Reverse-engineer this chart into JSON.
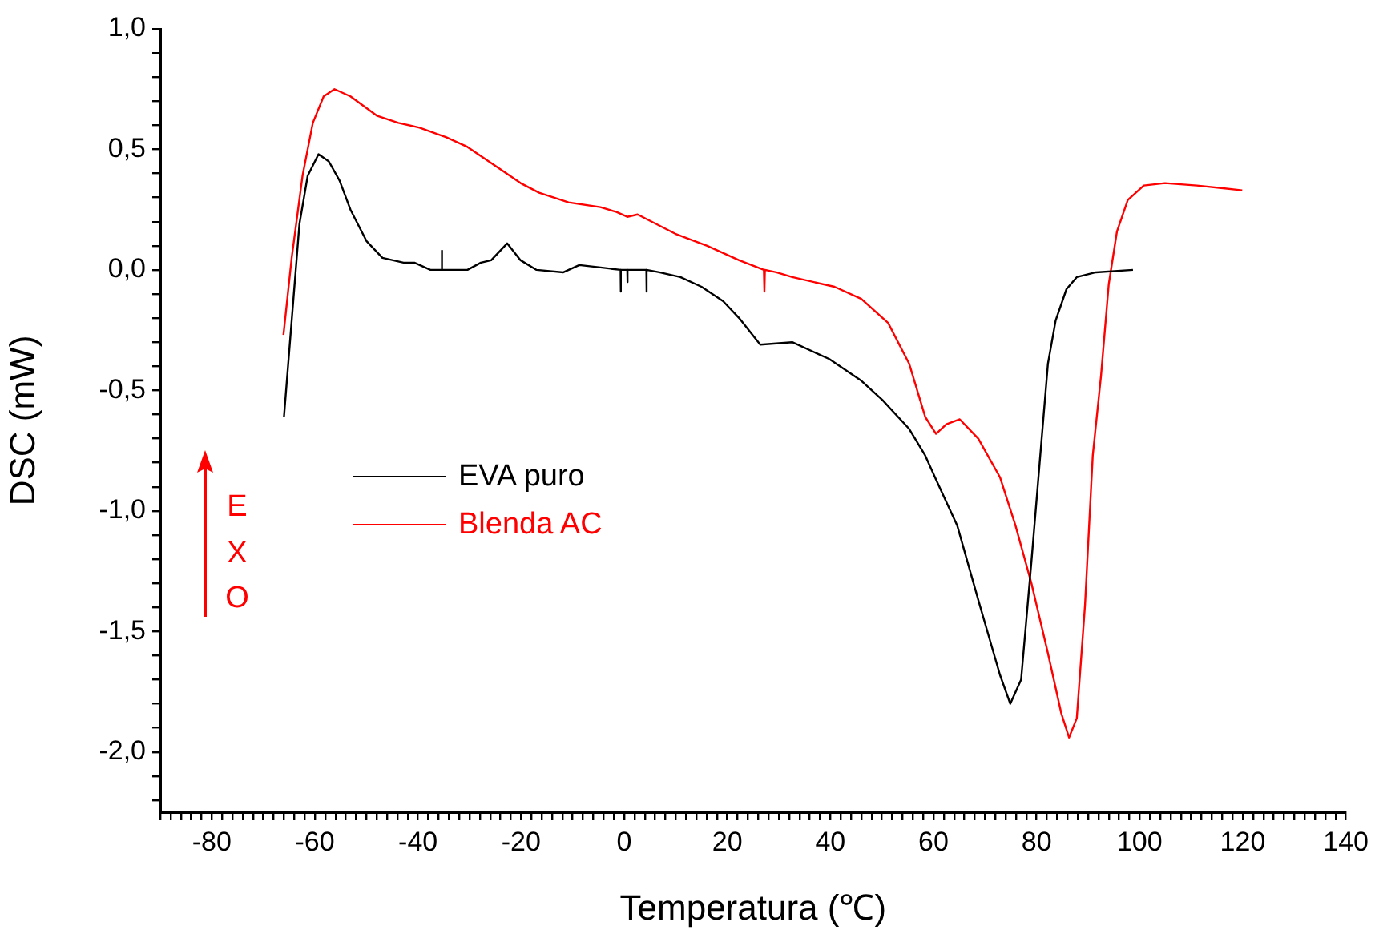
{
  "chart_data": {
    "type": "line",
    "xlabel": "Temperatura (℃)",
    "ylabel": "DSC (mW)",
    "annotations": [
      "EXO"
    ],
    "xlim": [
      -90,
      140
    ],
    "ylim": [
      -2.25,
      1.0
    ],
    "xticks": [
      {
        "value": -90,
        "label": null
      },
      {
        "value": -88,
        "label": null
      },
      {
        "value": -86,
        "label": null
      },
      {
        "value": -84,
        "label": null
      },
      {
        "value": -82,
        "label": null
      },
      -80,
      {
        "value": -78,
        "label": null
      },
      {
        "value": -76,
        "label": null
      },
      {
        "value": -74,
        "label": null
      },
      {
        "value": -72,
        "label": null
      },
      {
        "value": -70,
        "label": null
      },
      {
        "value": -68,
        "label": null
      },
      {
        "value": -66,
        "label": null
      },
      {
        "value": -64,
        "label": null
      },
      {
        "value": -62,
        "label": null
      },
      -60,
      {
        "value": -58,
        "label": null
      },
      {
        "value": -56,
        "label": null
      },
      {
        "value": -54,
        "label": null
      },
      {
        "value": -52,
        "label": null
      },
      {
        "value": -50,
        "label": null
      },
      {
        "value": -48,
        "label": null
      },
      {
        "value": -46,
        "label": null
      },
      {
        "value": -44,
        "label": null
      },
      {
        "value": -42,
        "label": null
      },
      -40,
      {
        "value": -38,
        "label": null
      },
      {
        "value": -36,
        "label": null
      },
      {
        "value": -34,
        "label": null
      },
      {
        "value": -32,
        "label": null
      },
      {
        "value": -30,
        "label": null
      },
      {
        "value": -28,
        "label": null
      },
      {
        "value": -26,
        "label": null
      },
      {
        "value": -24,
        "label": null
      },
      {
        "value": -22,
        "label": null
      },
      -20,
      {
        "value": -18,
        "label": null
      },
      {
        "value": -16,
        "label": null
      },
      {
        "value": -14,
        "label": null
      },
      {
        "value": -12,
        "label": null
      },
      {
        "value": -10,
        "label": null
      },
      {
        "value": -8,
        "label": null
      },
      {
        "value": -6,
        "label": null
      },
      {
        "value": -4,
        "label": null
      },
      {
        "value": -2,
        "label": null
      },
      0,
      {
        "value": 2,
        "label": null
      },
      {
        "value": 4,
        "label": null
      },
      {
        "value": 6,
        "label": null
      },
      {
        "value": 8,
        "label": null
      },
      {
        "value": 10,
        "label": null
      },
      {
        "value": 12,
        "label": null
      },
      {
        "value": 14,
        "label": null
      },
      {
        "value": 16,
        "label": null
      },
      {
        "value": 18,
        "label": null
      },
      20,
      {
        "value": 22,
        "label": null
      },
      {
        "value": 24,
        "label": null
      },
      {
        "value": 26,
        "label": null
      },
      {
        "value": 28,
        "label": null
      },
      {
        "value": 30,
        "label": null
      },
      {
        "value": 32,
        "label": null
      },
      {
        "value": 34,
        "label": null
      },
      {
        "value": 36,
        "label": null
      },
      {
        "value": 38,
        "label": null
      },
      40,
      {
        "value": 42,
        "label": null
      },
      {
        "value": 44,
        "label": null
      },
      {
        "value": 46,
        "label": null
      },
      {
        "value": 48,
        "label": null
      },
      {
        "value": 50,
        "label": null
      },
      {
        "value": 52,
        "label": null
      },
      {
        "value": 54,
        "label": null
      },
      {
        "value": 56,
        "label": null
      },
      {
        "value": 58,
        "label": null
      },
      60,
      {
        "value": 62,
        "label": null
      },
      {
        "value": 64,
        "label": null
      },
      {
        "value": 66,
        "label": null
      },
      {
        "value": 68,
        "label": null
      },
      {
        "value": 70,
        "label": null
      },
      {
        "value": 72,
        "label": null
      },
      {
        "value": 74,
        "label": null
      },
      {
        "value": 76,
        "label": null
      },
      {
        "value": 78,
        "label": null
      },
      80,
      {
        "value": 82,
        "label": null
      },
      {
        "value": 84,
        "label": null
      },
      {
        "value": 86,
        "label": null
      },
      {
        "value": 88,
        "label": null
      },
      {
        "value": 90,
        "label": null
      },
      {
        "value": 92,
        "label": null
      },
      {
        "value": 94,
        "label": null
      },
      {
        "value": 96,
        "label": null
      },
      {
        "value": 98,
        "label": null
      },
      100,
      {
        "value": 102,
        "label": null
      },
      {
        "value": 104,
        "label": null
      },
      {
        "value": 106,
        "label": null
      },
      {
        "value": 108,
        "label": null
      },
      {
        "value": 110,
        "label": null
      },
      {
        "value": 112,
        "label": null
      },
      {
        "value": 114,
        "label": null
      },
      {
        "value": 116,
        "label": null
      },
      {
        "value": 118,
        "label": null
      },
      120,
      {
        "value": 122,
        "label": null
      },
      {
        "value": 124,
        "label": null
      },
      {
        "value": 126,
        "label": null
      },
      {
        "value": 128,
        "label": null
      },
      {
        "value": 130,
        "label": null
      },
      {
        "value": 132,
        "label": null
      },
      {
        "value": 134,
        "label": null
      },
      {
        "value": 136,
        "label": null
      },
      {
        "value": 138,
        "label": null
      },
      140
    ],
    "yticks": [
      {
        "value": -2.2,
        "label": null
      },
      {
        "value": -2.1,
        "label": null
      },
      {
        "value": -2.0,
        "label": "-2,0"
      },
      {
        "value": -1.9,
        "label": null
      },
      {
        "value": -1.8,
        "label": null
      },
      {
        "value": -1.7,
        "label": null
      },
      {
        "value": -1.6,
        "label": null
      },
      {
        "value": -1.5,
        "label": "-1,5"
      },
      {
        "value": -1.4,
        "label": null
      },
      {
        "value": -1.3,
        "label": null
      },
      {
        "value": -1.2,
        "label": null
      },
      {
        "value": -1.1,
        "label": null
      },
      {
        "value": -1.0,
        "label": "-1,0"
      },
      {
        "value": -0.9,
        "label": null
      },
      {
        "value": -0.8,
        "label": null
      },
      {
        "value": -0.7,
        "label": null
      },
      {
        "value": -0.6,
        "label": null
      },
      {
        "value": -0.5,
        "label": "-0,5"
      },
      {
        "value": -0.4,
        "label": null
      },
      {
        "value": -0.3,
        "label": null
      },
      {
        "value": -0.2,
        "label": null
      },
      {
        "value": -0.1,
        "label": null
      },
      {
        "value": 0,
        "label": "0,0"
      },
      {
        "value": 0.1,
        "label": null
      },
      {
        "value": 0.2,
        "label": null
      },
      {
        "value": 0.3,
        "label": null
      },
      {
        "value": 0.4,
        "label": null
      },
      {
        "value": 0.5,
        "label": "0,5"
      },
      {
        "value": 0.6,
        "label": null
      },
      {
        "value": 0.7,
        "label": null
      },
      {
        "value": 0.8,
        "label": null
      },
      {
        "value": 0.9,
        "label": null
      },
      {
        "value": 1.0,
        "label": "1,0"
      }
    ],
    "grid": false,
    "legend": "left",
    "marker": "none",
    "line_style": "solid",
    "series": [
      {
        "name": "EVA puro",
        "color": "#000000",
        "x": [
          -66,
          -64.5,
          -63,
          -61.4,
          -59.3,
          -57.3,
          -55.2,
          -53.1,
          -50,
          -46.9,
          -42.8,
          -40.7,
          -37.6,
          -35.4,
          -35.4,
          -35.3,
          -30.4,
          -27.8,
          -25.8,
          -22.7,
          -20.1,
          -17,
          -11.8,
          -8.7,
          -4.6,
          -0.7,
          -0.7,
          -0.6,
          0.6,
          0.6,
          0.7,
          4.3,
          4.3,
          4.4,
          6.8,
          10.9,
          15,
          19.2,
          22.3,
          26.4,
          32.6,
          39.8,
          46,
          50.1,
          55.3,
          58.4,
          60.5,
          64.6,
          68.7,
          72.9,
          74.9,
          77,
          79,
          80.6,
          82.2,
          83.7,
          85.8,
          87.8,
          91.5,
          98.7
        ],
        "values": [
          -0.61,
          -0.21,
          0.19,
          0.39,
          0.48,
          0.45,
          0.37,
          0.25,
          0.12,
          0.05,
          0.03,
          0.03,
          0.0,
          0.0,
          0.08,
          0.0,
          0.0,
          0.03,
          0.04,
          0.11,
          0.04,
          0.0,
          -0.01,
          0.02,
          0.01,
          0.0,
          -0.09,
          0.0,
          0.0,
          -0.05,
          0.0,
          0.0,
          -0.09,
          0.0,
          -0.01,
          -0.03,
          -0.07,
          -0.13,
          -0.2,
          -0.31,
          -0.3,
          -0.37,
          -0.46,
          -0.54,
          -0.66,
          -0.77,
          -0.87,
          -1.06,
          -1.37,
          -1.68,
          -1.8,
          -1.7,
          -1.21,
          -0.8,
          -0.39,
          -0.21,
          -0.08,
          -0.03,
          -0.01,
          0.0
        ]
      },
      {
        "name": "Blenda AC",
        "color": "#ff0000",
        "x": [
          -66.1,
          -64.5,
          -62.4,
          -60.4,
          -58.3,
          -56.2,
          -53.1,
          -48,
          -43.8,
          -39.7,
          -34.5,
          -30.4,
          -24.2,
          -20.1,
          -16.5,
          -10.8,
          -4.6,
          -1.5,
          0.6,
          2.6,
          9.9,
          16.1,
          22.3,
          27.1,
          27.2,
          27.3,
          29.5,
          32.6,
          40.8,
          46,
          51.2,
          55.3,
          58.4,
          60.5,
          62.5,
          65.1,
          68.7,
          72.9,
          75.9,
          79,
          82.2,
          84.8,
          86.3,
          87.8,
          89.4,
          90.9,
          92.5,
          94,
          95.6,
          97.7,
          100.8,
          104.9,
          111.1,
          119.9
        ],
        "values": [
          -0.27,
          0.05,
          0.39,
          0.61,
          0.72,
          0.75,
          0.72,
          0.64,
          0.61,
          0.59,
          0.55,
          0.51,
          0.42,
          0.36,
          0.32,
          0.28,
          0.26,
          0.24,
          0.22,
          0.23,
          0.15,
          0.1,
          0.04,
          0.0,
          -0.09,
          0.0,
          -0.01,
          -0.03,
          -0.07,
          -0.12,
          -0.22,
          -0.39,
          -0.61,
          -0.68,
          -0.64,
          -0.62,
          -0.7,
          -0.86,
          -1.06,
          -1.3,
          -1.59,
          -1.84,
          -1.94,
          -1.86,
          -1.39,
          -0.77,
          -0.44,
          -0.06,
          0.16,
          0.29,
          0.35,
          0.36,
          0.35,
          0.33
        ]
      }
    ]
  }
}
